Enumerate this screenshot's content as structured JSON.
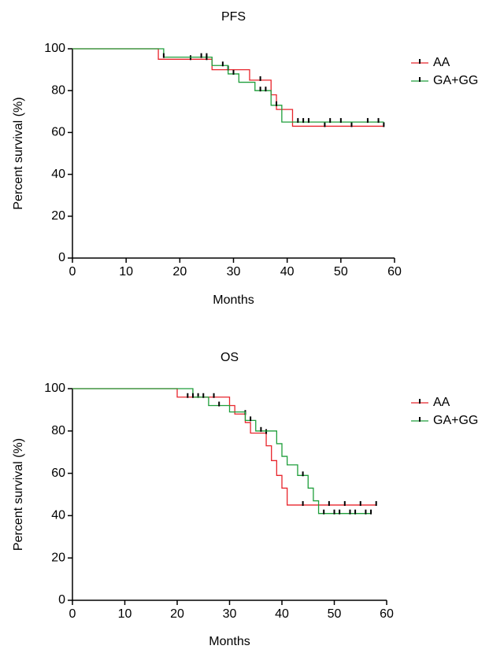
{
  "chart_data": [
    {
      "type": "step",
      "title": "PFS",
      "x_label": "Months",
      "y_label": "Percent survival (%)",
      "xlim": [
        0,
        60
      ],
      "ylim": [
        0,
        100
      ],
      "xticks": [
        0,
        10,
        20,
        30,
        40,
        50,
        60
      ],
      "yticks": [
        0,
        20,
        40,
        60,
        80,
        100
      ],
      "grid": false,
      "legend": "right",
      "series": [
        {
          "name": "AA",
          "color": "#e8242b",
          "x": [
            0,
            16,
            26,
            33,
            37,
            38,
            41,
            58
          ],
          "values": [
            100,
            95,
            90,
            85,
            78,
            71,
            63,
            63
          ],
          "censored": {
            "x": [
              22,
              25,
              29,
              35,
              47,
              52,
              58
            ],
            "values": [
              95,
              95,
              90,
              85,
              63,
              63,
              63
            ]
          }
        },
        {
          "name": "GA+GG",
          "color": "#1e9e3a",
          "x": [
            0,
            17,
            26,
            29,
            31,
            34,
            37,
            39,
            58
          ],
          "values": [
            100,
            96,
            92,
            88,
            84,
            80,
            73,
            65,
            65
          ],
          "censored": {
            "x": [
              17,
              24,
              25,
              28,
              30,
              35,
              36,
              38,
              42,
              43,
              44,
              48,
              50,
              55,
              57
            ],
            "values": [
              96,
              96,
              96,
              92,
              88,
              80,
              80,
              73,
              65,
              65,
              65,
              65,
              65,
              65,
              65
            ]
          }
        }
      ]
    },
    {
      "type": "step",
      "title": "OS",
      "x_label": "Months",
      "y_label": "Percent survival (%)",
      "xlim": [
        0,
        60
      ],
      "ylim": [
        0,
        100
      ],
      "xticks": [
        0,
        10,
        20,
        30,
        40,
        50,
        60
      ],
      "yticks": [
        0,
        20,
        40,
        60,
        80,
        100
      ],
      "grid": false,
      "legend": "right",
      "series": [
        {
          "name": "AA",
          "color": "#e8242b",
          "x": [
            0,
            20,
            30,
            31,
            33,
            34,
            37,
            38,
            39,
            40,
            41,
            42,
            58
          ],
          "values": [
            100,
            96,
            92,
            88,
            84,
            79,
            73,
            66,
            59,
            53,
            45,
            45,
            45
          ],
          "censored": {
            "x": [
              22,
              24,
              27,
              33,
              37,
              44,
              49,
              52,
              55,
              58
            ],
            "values": [
              96,
              96,
              96,
              88,
              79,
              45,
              45,
              45,
              45,
              45
            ]
          }
        },
        {
          "name": "GA+GG",
          "color": "#1e9e3a",
          "x": [
            0,
            23,
            26,
            30,
            33,
            35,
            39,
            40,
            41,
            43,
            45,
            46,
            47,
            57
          ],
          "values": [
            100,
            96,
            92,
            89,
            85,
            80,
            74,
            68,
            64,
            59,
            53,
            47,
            41,
            41
          ],
          "censored": {
            "x": [
              23,
              25,
              28,
              34,
              36,
              44,
              48,
              50,
              51,
              53,
              54,
              56,
              57
            ],
            "values": [
              96,
              96,
              92,
              85,
              80,
              59,
              41,
              41,
              41,
              41,
              41,
              41,
              41
            ]
          }
        }
      ]
    }
  ]
}
